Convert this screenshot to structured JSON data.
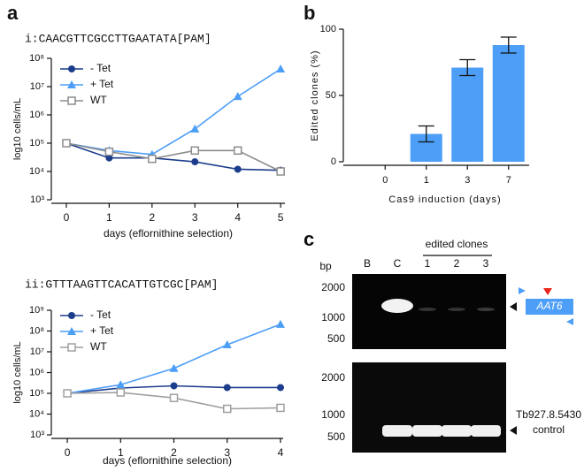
{
  "panels": [
    "a",
    "b",
    "c"
  ],
  "chart_data": [
    {
      "type": "line",
      "title": "i:CAACGTTCGCCTTGAATATA[PAM]",
      "x_label": "days (eflornithine selection)",
      "y_label": "log10 cells/mL",
      "log_y": true,
      "legend": "upper left",
      "x": [
        0,
        1,
        2,
        3,
        4,
        5
      ],
      "xlim": [
        -0.35,
        5.1
      ],
      "xticks": [
        0,
        1,
        2,
        3,
        4,
        5
      ],
      "ylim": [
        1000,
        100000000
      ],
      "yticks": [
        {
          "value": 1000,
          "label": "10³"
        },
        {
          "value": 10000,
          "label": "10⁴"
        },
        {
          "value": 100000,
          "label": "10⁵"
        },
        {
          "value": 1000000,
          "label": "10⁶"
        },
        {
          "value": 10000000,
          "label": "10⁷"
        },
        {
          "value": 100000000,
          "label": "10⁸"
        }
      ],
      "series": [
        {
          "name": "- Tet",
          "color": "#1c3d8c",
          "marker": "circle",
          "values": [
            100000,
            30000,
            30000,
            22000,
            12000,
            11000
          ]
        },
        {
          "name": "+ Tet",
          "color": "#4d9ef7",
          "marker": "triangle",
          "values": [
            100000,
            55000,
            40000,
            320000,
            4500000,
            42000000
          ]
        },
        {
          "name": "WT",
          "color": "#8c8c8c",
          "marker": "square",
          "values": [
            100000,
            50000,
            28000,
            55000,
            55000,
            10000
          ]
        }
      ]
    },
    {
      "type": "line",
      "title": "ii:GTTTAAGTTCACATTGTCGC[PAM]",
      "x_label": "days (eflornithine selection)",
      "y_label": "log10 cells/mL",
      "log_y": true,
      "legend": "upper left",
      "x": [
        0,
        1,
        2,
        3,
        4
      ],
      "xlim": [
        -0.3,
        4.05
      ],
      "xticks": [
        0,
        1,
        2,
        3,
        4
      ],
      "ylim": [
        1000,
        1000000000
      ],
      "yticks": [
        {
          "value": 1000,
          "label": "10³"
        },
        {
          "value": 10000,
          "label": "10⁴"
        },
        {
          "value": 100000,
          "label": "10⁵"
        },
        {
          "value": 1000000,
          "label": "10⁶"
        },
        {
          "value": 10000000,
          "label": "10⁷"
        },
        {
          "value": 100000000,
          "label": "10⁸"
        },
        {
          "value": 1000000000,
          "label": "10⁹"
        }
      ],
      "series": [
        {
          "name": "- Tet",
          "color": "#1c3d8c",
          "marker": "circle",
          "values": [
            100000,
            180000,
            230000,
            190000,
            190000
          ]
        },
        {
          "name": "+ Tet",
          "color": "#4d9ef7",
          "marker": "triangle",
          "values": [
            100000,
            260000,
            1600000,
            22000000,
            210000000
          ]
        },
        {
          "name": "WT",
          "color": "#a0a0a0",
          "marker": "square",
          "values": [
            100000,
            110000,
            60000,
            18000,
            20000
          ]
        }
      ]
    },
    {
      "type": "bar",
      "x_label": "Cas9 induction (days)",
      "y_label": "Edited clones (%)",
      "categories": [
        "0",
        "1",
        "3",
        "7"
      ],
      "values": [
        0,
        21,
        71,
        88
      ],
      "errors": [
        0,
        6,
        6,
        6
      ],
      "color": "#4d9ef7",
      "ylim": [
        0,
        100
      ],
      "yticks": [
        0,
        50,
        100
      ]
    }
  ],
  "gel": {
    "header": "edited clones",
    "unit": "bp",
    "lanes": [
      "B",
      "C",
      "1",
      "2",
      "3"
    ],
    "top_markers": [
      "2000",
      "1000",
      "500"
    ],
    "bottom_markers": [
      "2000",
      "1000",
      "500"
    ],
    "gene": "AAT6",
    "control": [
      "Tb927.8.5430",
      "control"
    ]
  }
}
